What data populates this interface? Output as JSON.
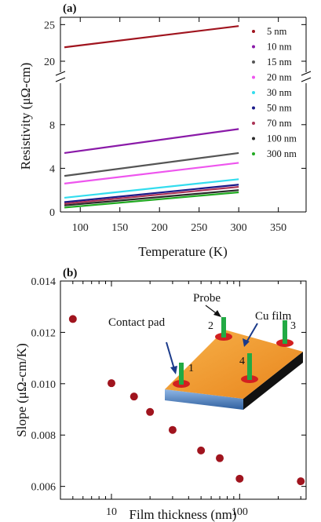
{
  "chart_data": [
    {
      "panel": "(a)",
      "type": "line",
      "xlabel": "Temperature (K)",
      "ylabel": "Resistivity (μΩ-cm)",
      "xlim": [
        75,
        385
      ],
      "xticks": [
        100,
        150,
        200,
        250,
        300,
        350
      ],
      "yticks_lower": [
        0,
        4,
        8
      ],
      "yticks_upper": [
        20,
        25
      ],
      "axis_break": true,
      "legend_position": "right",
      "series": [
        {
          "name": "5 nm",
          "color": "#a0141e",
          "x": [
            80,
            300
          ],
          "y": [
            21.9,
            24.8
          ]
        },
        {
          "name": "10 nm",
          "color": "#8a1aa8",
          "x": [
            80,
            300
          ],
          "y": [
            5.4,
            7.6
          ]
        },
        {
          "name": "15 nm",
          "color": "#555555",
          "x": [
            80,
            300
          ],
          "y": [
            3.3,
            5.4
          ]
        },
        {
          "name": "20 nm",
          "color": "#ee55ee",
          "x": [
            80,
            300
          ],
          "y": [
            2.6,
            4.5
          ]
        },
        {
          "name": "30 nm",
          "color": "#33ddee",
          "x": [
            80,
            300
          ],
          "y": [
            1.3,
            3.0
          ]
        },
        {
          "name": "50 nm",
          "color": "#1a1a8a",
          "x": [
            80,
            300
          ],
          "y": [
            0.9,
            2.5
          ]
        },
        {
          "name": "70 nm",
          "color": "#aa3355",
          "x": [
            80,
            300
          ],
          "y": [
            0.75,
            2.3
          ]
        },
        {
          "name": "100 nm",
          "color": "#2a2a2a",
          "x": [
            80,
            300
          ],
          "y": [
            0.6,
            2.0
          ]
        },
        {
          "name": "300 nm",
          "color": "#22aa22",
          "x": [
            80,
            300
          ],
          "y": [
            0.4,
            1.8
          ]
        }
      ]
    },
    {
      "panel": "(b)",
      "type": "scatter",
      "xlabel": "Film thickness (nm)",
      "ylabel": "Slope (μΩ-cm/K)",
      "xscale": "log",
      "xlim": [
        4,
        330
      ],
      "ylim": [
        0.0055,
        0.014
      ],
      "xtick_labels": [
        "10",
        "100"
      ],
      "yticks": [
        "0.006",
        "0.008",
        "0.010",
        "0.012",
        "0.014"
      ],
      "marker_color": "#a0141e",
      "x": [
        5,
        10,
        15,
        20,
        30,
        50,
        70,
        100,
        300
      ],
      "y": [
        0.01252,
        0.01002,
        0.0095,
        0.0089,
        0.0082,
        0.0074,
        0.0071,
        0.0063,
        0.0062
      ],
      "inset": {
        "labels": [
          "Probe",
          "Cu film",
          "Contact pad"
        ],
        "probe_numbers": [
          "1",
          "2",
          "3",
          "4"
        ],
        "colors": {
          "film": "#f39a2c",
          "substrate": "#4a86c8",
          "probe": "#22aa44",
          "pad": "#d22020"
        }
      }
    }
  ]
}
